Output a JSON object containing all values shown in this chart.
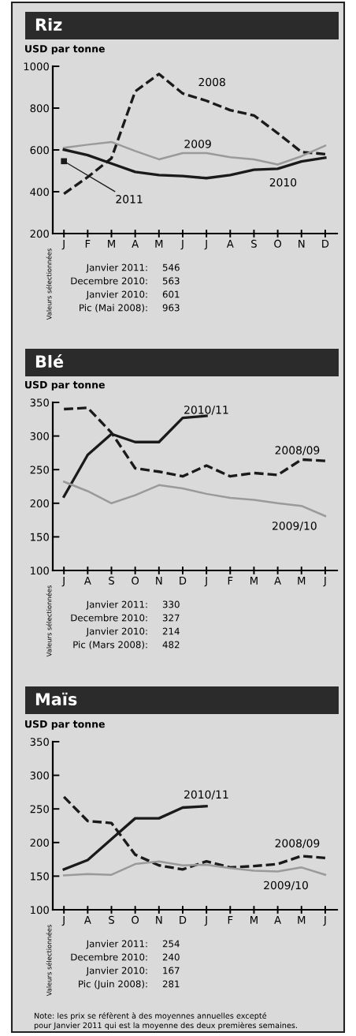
{
  "chart_data": [
    {
      "type": "line",
      "title": "Riz",
      "ylabel": "USD par tonne",
      "categories": [
        "J",
        "F",
        "M",
        "A",
        "M",
        "J",
        "J",
        "A",
        "S",
        "O",
        "N",
        "D"
      ],
      "series": [
        {
          "name": "2008",
          "color": "#1a1a1a",
          "line_style": "dashed",
          "values": [
            390,
            470,
            560,
            880,
            963,
            870,
            835,
            790,
            765,
            680,
            590,
            580
          ]
        },
        {
          "name": "2009",
          "color": "#9a9a9a",
          "line_style": "solid",
          "values": [
            610,
            625,
            638,
            595,
            555,
            585,
            585,
            565,
            555,
            530,
            570,
            620
          ]
        },
        {
          "name": "2010",
          "color": "#1a1a1a",
          "line_style": "solid",
          "values": [
            601,
            575,
            535,
            495,
            480,
            475,
            465,
            480,
            505,
            510,
            545,
            563
          ]
        },
        {
          "name": "2011",
          "type": "scatter",
          "color": "#1a1a1a",
          "values": [
            546,
            null,
            null,
            null,
            null,
            null,
            null,
            null,
            null,
            null,
            null,
            null
          ]
        }
      ],
      "ylim": [
        200,
        1000
      ],
      "yticks": [
        200,
        400,
        600,
        800,
        1000
      ],
      "annotations": [
        "Valeurs sélectionnées",
        "Janvier 2011: 546",
        "Decembre 2010: 563",
        "Janvier 2010: 601",
        "Pic (Mai 2008): 963"
      ]
    },
    {
      "type": "line",
      "title": "Blé",
      "ylabel": "USD par tonne",
      "categories": [
        "J",
        "A",
        "S",
        "O",
        "N",
        "D",
        "J",
        "F",
        "M",
        "A",
        "M",
        "J"
      ],
      "series": [
        {
          "name": "2010/11",
          "color": "#1a1a1a",
          "line_style": "solid",
          "values": [
            210,
            272,
            303,
            291,
            291,
            327,
            330,
            null,
            null,
            null,
            null,
            null
          ]
        },
        {
          "name": "2008/09",
          "color": "#1a1a1a",
          "line_style": "dashed",
          "values": [
            340,
            342,
            305,
            252,
            247,
            240,
            256,
            240,
            245,
            242,
            265,
            263
          ]
        },
        {
          "name": "2009/10",
          "color": "#9a9a9a",
          "line_style": "solid",
          "values": [
            232,
            218,
            200,
            212,
            227,
            222,
            214,
            208,
            205,
            200,
            196,
            181
          ]
        }
      ],
      "ylim": [
        100,
        350
      ],
      "yticks": [
        100,
        150,
        200,
        250,
        300,
        350
      ],
      "annotations": [
        "Valeurs sélectionnées",
        "Janvier 2011: 330",
        "Decembre 2010: 327",
        "Janvier 2010: 214",
        "Pic (Mars 2008): 482"
      ]
    },
    {
      "type": "line",
      "title": "Maïs",
      "ylabel": "USD par tonne",
      "categories": [
        "J",
        "A",
        "S",
        "O",
        "N",
        "D",
        "J",
        "F",
        "M",
        "A",
        "M",
        "J"
      ],
      "series": [
        {
          "name": "2010/11",
          "color": "#1a1a1a",
          "line_style": "solid",
          "values": [
            160,
            174,
            205,
            236,
            236,
            252,
            254,
            null,
            null,
            null,
            null,
            null
          ]
        },
        {
          "name": "2008/09",
          "color": "#1a1a1a",
          "line_style": "dashed",
          "values": [
            268,
            232,
            229,
            182,
            166,
            160,
            172,
            163,
            165,
            168,
            180,
            177
          ]
        },
        {
          "name": "2009/10",
          "color": "#9a9a9a",
          "line_style": "solid",
          "values": [
            151,
            153,
            152,
            168,
            172,
            166,
            167,
            162,
            158,
            157,
            163,
            152
          ]
        }
      ],
      "ylim": [
        100,
        350
      ],
      "yticks": [
        100,
        150,
        200,
        250,
        300,
        350
      ],
      "annotations": [
        "Valeurs sélectionnées",
        "Janvier 2011: 254",
        "Decembre 2010: 240",
        "Janvier 2010: 167",
        "Pic (Juin 2008): 281",
        "Note: les prix se réfèrent à des moyennes annuelles excepté\npour Janvier 2011 qui est la moyenne des deux premières semaines."
      ]
    }
  ]
}
